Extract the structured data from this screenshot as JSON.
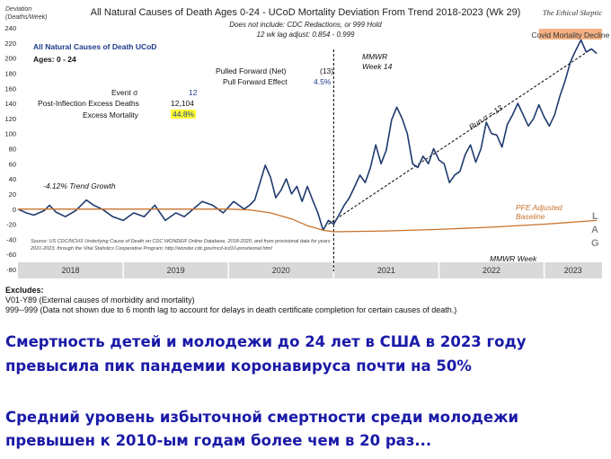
{
  "chart_data": {
    "type": "line",
    "title": "All Natural Causes of Death Ages 0-24 - UCoD Mortality Deviation From Trend 2018-2023 (Wk 29)",
    "subtitle_lines": [
      "Does not include: CDC Redactions, or 999 Hold",
      "12 wk lag adjust: 0.854 - 0.999"
    ],
    "brand": "The Ethical Skeptic",
    "ylabel": "Deviation (Deaths/Week)",
    "ylim": [
      -80,
      240
    ],
    "yticks": [
      -80,
      -60,
      -40,
      -20,
      0,
      20,
      40,
      60,
      80,
      100,
      120,
      140,
      160,
      180,
      200,
      220,
      240
    ],
    "xlim": [
      2018.0,
      2023.55
    ],
    "year_labels": [
      "2018",
      "2019",
      "2020",
      "2021",
      "2022",
      "2023"
    ],
    "x_axis_label": "MMWR Week",
    "series": [
      {
        "name": "",
        "color": "#1f3a6e",
        "x": [
          2018.0,
          2018.08,
          2018.15,
          2018.25,
          2018.3,
          2018.36,
          2018.45,
          2018.55,
          2018.65,
          2018.72,
          2018.8,
          2018.9,
          2019.0,
          2019.1,
          2019.2,
          2019.3,
          2019.4,
          2019.5,
          2019.58,
          2019.65,
          2019.75,
          2019.85,
          2019.95,
          2020.05,
          2020.1,
          2020.15,
          2020.2,
          2020.25,
          2020.3,
          2020.35,
          2020.4,
          2020.45,
          2020.5,
          2020.55,
          2020.6,
          2020.65,
          2020.7,
          2020.75,
          2020.8,
          2020.85,
          2020.9,
          2020.95,
          2021.0,
          2021.05,
          2021.1,
          2021.15,
          2021.2,
          2021.25,
          2021.3,
          2021.35,
          2021.4,
          2021.45,
          2021.5,
          2021.55,
          2021.6,
          2021.65,
          2021.7,
          2021.75,
          2021.8,
          2021.85,
          2021.9,
          2021.95,
          2022.0,
          2022.05,
          2022.1,
          2022.15,
          2022.2,
          2022.25,
          2022.3,
          2022.35,
          2022.4,
          2022.45,
          2022.5,
          2022.55,
          2022.6,
          2022.65,
          2022.7,
          2022.75,
          2022.8,
          2022.85,
          2022.9,
          2022.95,
          2023.0,
          2023.05,
          2023.1,
          2023.15,
          2023.2,
          2023.25,
          2023.3,
          2023.35,
          2023.4,
          2023.45,
          2023.5
        ],
        "y": [
          0,
          -5,
          -8,
          -2,
          5,
          -4,
          -10,
          -2,
          12,
          5,
          0,
          -10,
          -15,
          -5,
          -10,
          5,
          -15,
          -5,
          -10,
          -2,
          10,
          5,
          -5,
          10,
          5,
          0,
          5,
          12,
          35,
          58,
          42,
          15,
          25,
          40,
          20,
          30,
          10,
          30,
          12,
          -5,
          -28,
          -15,
          -20,
          -8,
          5,
          15,
          30,
          45,
          35,
          55,
          85,
          60,
          78,
          118,
          135,
          120,
          100,
          60,
          55,
          70,
          60,
          80,
          65,
          60,
          35,
          45,
          50,
          72,
          85,
          62,
          80,
          115,
          100,
          98,
          82,
          112,
          125,
          140,
          125,
          110,
          120,
          138,
          122,
          110,
          125,
          150,
          170,
          195,
          210,
          224,
          208,
          212,
          206
        ]
      },
      {
        "name": "PFE Adjusted Baseline",
        "color": "#c8722d",
        "x": [
          2018.0,
          2019.0,
          2020.0,
          2020.2,
          2020.4,
          2020.6,
          2020.75,
          2020.9,
          2021.0,
          2021.5,
          2022.0,
          2022.5,
          2023.0,
          2023.5
        ],
        "y": [
          0,
          0,
          0,
          -1,
          -5,
          -13,
          -22,
          -28,
          -30,
          -29,
          -27,
          -24,
          -20,
          -15
        ]
      }
    ],
    "trend_line": {
      "x": [
        2020.95,
        2023.45
      ],
      "y": [
        -20,
        212
      ],
      "label": "Run σ = 13"
    },
    "vline": {
      "x": 2021.0,
      "label_lines": [
        "MMWR",
        "Week 14"
      ]
    },
    "covid_band": {
      "x": [
        2022.95,
        2023.55
      ],
      "label": "Covid Mortality Decline"
    },
    "lag_label": [
      "L",
      "A",
      "G"
    ]
  },
  "annotations": {
    "series_title": "All Natural Causes of Death UCoD",
    "ages": "Ages: 0 - 24",
    "pulled_forward_label": "Pulled Forward (Net)",
    "pulled_forward_value": "(13)",
    "pull_forward_effect_label": "Pull Forward Effect",
    "pull_forward_effect_value": "4.5%",
    "event_label": "Event σ",
    "event_value": "12",
    "post_inflection_label": "Post-Inflection Excess Deaths",
    "post_inflection_value": "12,104",
    "excess_mortality_label": "Excess Mortality",
    "excess_mortality_value": "44.8%",
    "trend_growth": "-4.12% Trend Growth",
    "source_line1": "Source: US CDC/NCHS Underlying Cause of Death on CDC WONDER Online Database, 2018-2020, and from provisional data for years",
    "source_line2": "2021-2023, through the Vital Statistics Cooperative Program; http://wonder.cdc.gov/mcd-icd10-provisional.html"
  },
  "notes": {
    "heading": "Excludes:",
    "line1": "V01-Y89 (External causes of morbidity and mortality)",
    "line2": "999--999 (Data not shown due to 6 month lag to account for delays in death certificate completion for certain causes of death.)"
  },
  "caption": {
    "line1": "Смертность детей и молодежи до 24 лет в США в 2023 году",
    "line2": "превысила пик пандемии коронавируса почти на 50%",
    "line3": "Средний уровень избыточной смертности среди молодежи",
    "line4": "превышен к 2010-ым годам более чем в 20 раз..."
  },
  "colors": {
    "main_line": "#1f3a6e",
    "baseline": "#c8722d",
    "axis_band": "#d9d9d9",
    "covid_band": "#f4b183",
    "caption_text": "#1a1aa8",
    "highlight": "#ffff33"
  }
}
